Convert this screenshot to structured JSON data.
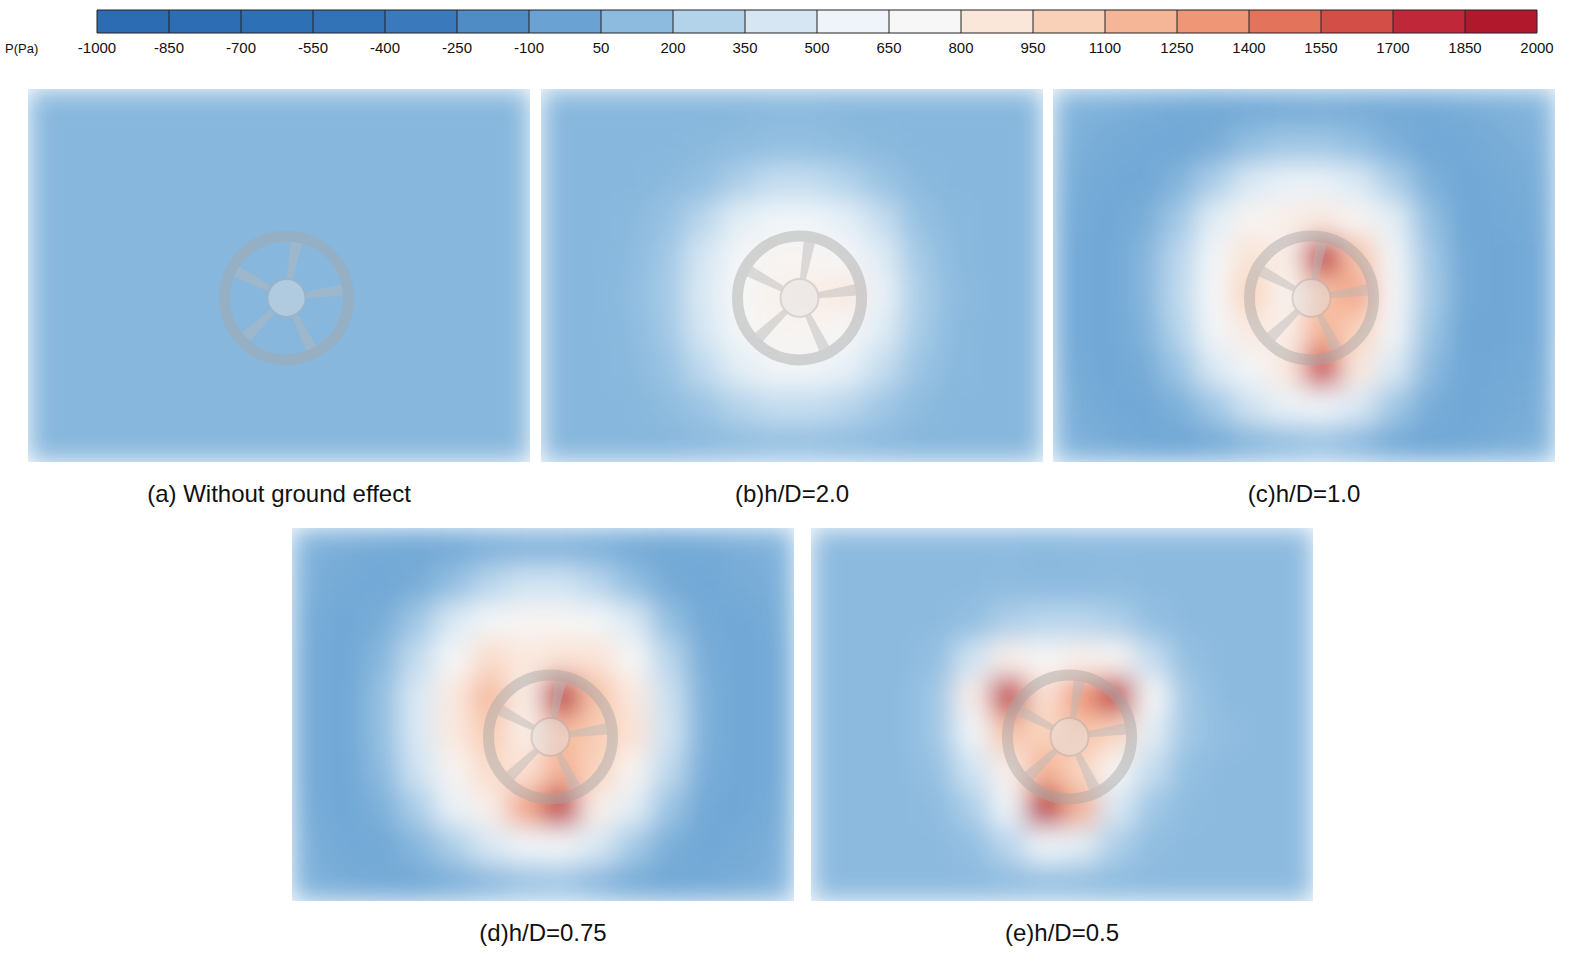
{
  "chart_data": {
    "type": "heatmap",
    "colorbar": {
      "label": "P(Pa)",
      "range": [
        -1000,
        2000
      ],
      "ticks": [
        -1000,
        -850,
        -700,
        -550,
        -400,
        -250,
        -100,
        50,
        200,
        350,
        500,
        650,
        800,
        950,
        1100,
        1250,
        1400,
        1550,
        1700,
        1850,
        2000
      ],
      "colors": [
        "#2b6cb3",
        "#2c6db4",
        "#2e70b5",
        "#3273b8",
        "#3a7abc",
        "#4f8cc6",
        "#6aa3d3",
        "#8dbbdf",
        "#b3d3ea",
        "#d6e7f3",
        "#eef4f9",
        "#f7f7f7",
        "#fbe6da",
        "#f9d0b8",
        "#f5b597",
        "#ef9677",
        "#e4735c",
        "#d34e47",
        "#c0283a",
        "#b2182b"
      ]
    },
    "panels": [
      {
        "title": "(a) Without ground effect",
        "cells": [
          [
            100,
            100,
            100,
            100,
            100,
            100,
            100,
            100,
            100,
            100,
            100,
            100,
            100,
            100
          ],
          [
            100,
            100,
            100,
            100,
            100,
            100,
            100,
            100,
            100,
            100,
            100,
            100,
            100,
            100
          ],
          [
            100,
            100,
            100,
            100,
            100,
            100,
            100,
            100,
            100,
            100,
            100,
            100,
            100,
            100
          ],
          [
            100,
            100,
            100,
            100,
            100,
            100,
            100,
            100,
            100,
            100,
            100,
            100,
            100,
            100
          ],
          [
            100,
            100,
            100,
            100,
            100,
            100,
            100,
            100,
            100,
            100,
            100,
            100,
            100,
            100
          ],
          [
            100,
            100,
            100,
            100,
            100,
            100,
            100,
            100,
            100,
            100,
            100,
            100,
            100,
            100
          ],
          [
            100,
            100,
            100,
            100,
            100,
            100,
            100,
            100,
            100,
            100,
            100,
            100,
            100,
            100
          ],
          [
            100,
            100,
            100,
            100,
            100,
            100,
            100,
            100,
            100,
            100,
            100,
            100,
            100,
            100
          ],
          [
            100,
            100,
            100,
            100,
            100,
            100,
            100,
            100,
            100,
            100,
            100,
            100,
            100,
            100
          ],
          [
            100,
            100,
            100,
            100,
            100,
            100,
            100,
            100,
            100,
            100,
            100,
            100,
            100,
            100
          ]
        ]
      },
      {
        "title": "(b)h/D=2.0",
        "cells": [
          [
            100,
            100,
            100,
            100,
            100,
            100,
            110,
            110,
            100,
            100,
            100,
            100,
            100,
            100
          ],
          [
            100,
            100,
            100,
            100,
            110,
            130,
            150,
            150,
            130,
            110,
            100,
            100,
            100,
            100
          ],
          [
            100,
            100,
            100,
            120,
            150,
            250,
            350,
            350,
            280,
            180,
            120,
            100,
            100,
            100
          ],
          [
            100,
            100,
            110,
            160,
            300,
            500,
            600,
            600,
            520,
            350,
            160,
            110,
            100,
            100
          ],
          [
            100,
            100,
            120,
            200,
            420,
            650,
            750,
            750,
            680,
            480,
            220,
            120,
            100,
            100
          ],
          [
            100,
            100,
            130,
            220,
            450,
            700,
            780,
            800,
            850,
            550,
            250,
            130,
            100,
            100
          ],
          [
            100,
            100,
            120,
            200,
            420,
            650,
            750,
            760,
            700,
            480,
            230,
            120,
            100,
            100
          ],
          [
            100,
            100,
            110,
            170,
            320,
            500,
            620,
            620,
            540,
            350,
            180,
            110,
            100,
            100
          ],
          [
            100,
            100,
            100,
            130,
            180,
            280,
            350,
            350,
            300,
            200,
            130,
            100,
            100,
            100
          ],
          [
            100,
            100,
            100,
            100,
            120,
            140,
            160,
            160,
            140,
            120,
            100,
            100,
            100,
            100
          ]
        ]
      },
      {
        "title": "(c)h/D=1.0",
        "cells": [
          [
            80,
            60,
            40,
            20,
            10,
            20,
            30,
            40,
            30,
            20,
            20,
            40,
            60,
            80
          ],
          [
            60,
            30,
            10,
            0,
            40,
            150,
            200,
            200,
            150,
            60,
            0,
            10,
            40,
            60
          ],
          [
            40,
            10,
            0,
            80,
            250,
            450,
            550,
            550,
            450,
            250,
            60,
            0,
            20,
            40
          ],
          [
            30,
            0,
            40,
            200,
            500,
            750,
            800,
            850,
            750,
            500,
            150,
            0,
            10,
            30
          ],
          [
            20,
            0,
            80,
            300,
            650,
            900,
            800,
            1800,
            1100,
            650,
            200,
            10,
            0,
            20
          ],
          [
            20,
            0,
            80,
            320,
            700,
            1000,
            750,
            1100,
            1250,
            700,
            220,
            10,
            0,
            20
          ],
          [
            20,
            0,
            60,
            280,
            650,
            850,
            800,
            1200,
            1000,
            620,
            180,
            0,
            0,
            20
          ],
          [
            30,
            0,
            30,
            180,
            450,
            650,
            850,
            1700,
            850,
            450,
            120,
            0,
            10,
            30
          ],
          [
            50,
            10,
            0,
            60,
            200,
            400,
            550,
            600,
            450,
            200,
            40,
            0,
            20,
            40
          ],
          [
            70,
            40,
            10,
            0,
            30,
            100,
            150,
            180,
            120,
            30,
            0,
            10,
            40,
            60
          ]
        ]
      },
      {
        "title": "(d)h/D=0.75",
        "cells": [
          [
            70,
            40,
            20,
            10,
            20,
            60,
            80,
            80,
            60,
            20,
            10,
            20,
            50,
            70
          ],
          [
            50,
            20,
            0,
            40,
            150,
            300,
            400,
            400,
            300,
            150,
            30,
            0,
            30,
            50
          ],
          [
            30,
            0,
            40,
            200,
            450,
            650,
            750,
            750,
            650,
            450,
            150,
            20,
            0,
            30
          ],
          [
            20,
            0,
            100,
            350,
            700,
            950,
            850,
            900,
            900,
            700,
            300,
            40,
            0,
            20
          ],
          [
            20,
            0,
            150,
            450,
            850,
            1150,
            800,
            1850,
            1100,
            850,
            380,
            60,
            0,
            20
          ],
          [
            20,
            0,
            150,
            450,
            850,
            1050,
            800,
            1150,
            1050,
            900,
            400,
            60,
            0,
            20
          ],
          [
            20,
            0,
            120,
            400,
            750,
            950,
            900,
            1200,
            1000,
            750,
            320,
            40,
            0,
            20
          ],
          [
            30,
            0,
            60,
            250,
            550,
            800,
            1250,
            1800,
            800,
            500,
            180,
            10,
            0,
            30
          ],
          [
            50,
            10,
            10,
            100,
            250,
            450,
            600,
            650,
            450,
            220,
            50,
            0,
            20,
            50
          ],
          [
            70,
            40,
            20,
            20,
            60,
            120,
            180,
            200,
            120,
            40,
            10,
            20,
            40,
            70
          ]
        ]
      },
      {
        "title": "(e)h/D=0.5",
        "cells": [
          [
            120,
            120,
            120,
            120,
            120,
            120,
            110,
            120,
            120,
            120,
            120,
            120,
            120,
            120
          ],
          [
            120,
            120,
            120,
            120,
            120,
            130,
            120,
            120,
            130,
            120,
            120,
            120,
            120,
            120
          ],
          [
            120,
            120,
            120,
            120,
            150,
            250,
            300,
            300,
            250,
            150,
            120,
            120,
            120,
            120
          ],
          [
            120,
            120,
            120,
            150,
            400,
            800,
            700,
            800,
            750,
            350,
            150,
            120,
            120,
            120
          ],
          [
            120,
            120,
            120,
            200,
            800,
            1800,
            900,
            1300,
            1800,
            700,
            200,
            120,
            120,
            120
          ],
          [
            120,
            120,
            120,
            200,
            600,
            1100,
            1000,
            1100,
            1000,
            500,
            200,
            140,
            120,
            120
          ],
          [
            120,
            120,
            120,
            160,
            400,
            800,
            1200,
            1000,
            700,
            350,
            150,
            120,
            120,
            120
          ],
          [
            120,
            120,
            120,
            130,
            250,
            600,
            1850,
            1200,
            450,
            200,
            130,
            120,
            120,
            120
          ],
          [
            120,
            120,
            120,
            120,
            150,
            300,
            600,
            500,
            250,
            140,
            120,
            120,
            120,
            120
          ],
          [
            120,
            120,
            120,
            120,
            120,
            140,
            160,
            150,
            130,
            120,
            120,
            120,
            120,
            120
          ]
        ]
      }
    ]
  }
}
